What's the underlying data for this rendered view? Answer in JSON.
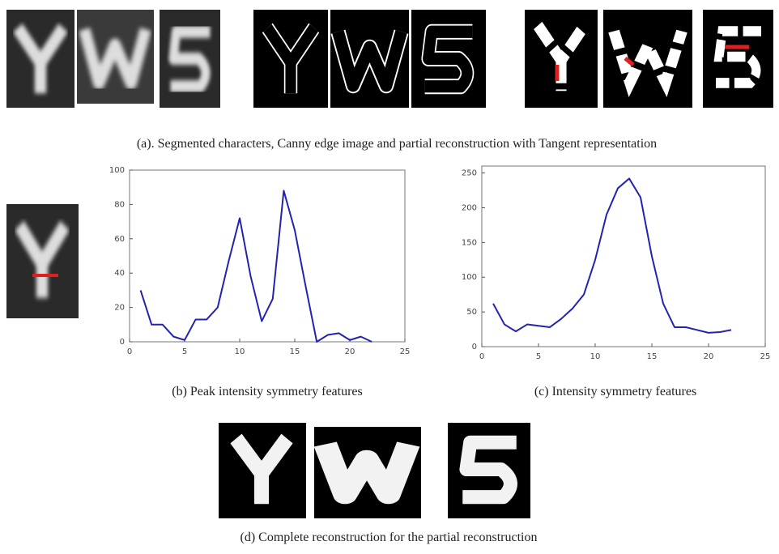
{
  "panels": {
    "a": {
      "caption": "(a). Segmented characters, Canny edge image and partial reconstruction with Tangent representation"
    },
    "d": {
      "caption": "(d) Complete reconstruction for the partial reconstruction"
    }
  },
  "chart_data": [
    {
      "type": "line",
      "caption": "(b) Peak intensity symmetry features",
      "x": [
        1,
        2,
        3,
        4,
        5,
        6,
        7,
        8,
        9,
        10,
        11,
        12,
        13,
        14,
        15,
        16,
        17,
        18,
        19,
        20,
        21,
        22
      ],
      "series": [
        {
          "color": "#2323b0",
          "values": [
            30,
            10,
            10,
            3,
            1,
            13,
            13,
            20,
            47,
            72,
            38,
            12,
            25,
            88,
            65,
            32,
            0,
            4,
            5,
            1,
            3,
            0
          ]
        }
      ],
      "xlim": [
        0,
        25
      ],
      "xticks": [
        0,
        5,
        10,
        15,
        20,
        25
      ],
      "ylim": [
        0,
        100
      ],
      "yticks": [
        0,
        20,
        40,
        60,
        80,
        100
      ]
    },
    {
      "type": "line",
      "caption": "(c) Intensity symmetry features",
      "x": [
        1,
        2,
        3,
        4,
        5,
        6,
        7,
        8,
        9,
        10,
        11,
        12,
        13,
        14,
        15,
        16,
        17,
        18,
        19,
        20,
        21,
        22
      ],
      "series": [
        {
          "color": "#2323b0",
          "values": [
            62,
            32,
            22,
            32,
            30,
            28,
            40,
            55,
            75,
            125,
            190,
            228,
            242,
            215,
            130,
            62,
            28,
            28,
            24,
            20,
            21,
            24
          ]
        }
      ],
      "xlim": [
        0,
        25
      ],
      "xticks": [
        0,
        5,
        10,
        15,
        20,
        25
      ],
      "ylim": [
        0,
        260
      ],
      "yticks": [
        0,
        50,
        100,
        150,
        200,
        250
      ]
    }
  ]
}
